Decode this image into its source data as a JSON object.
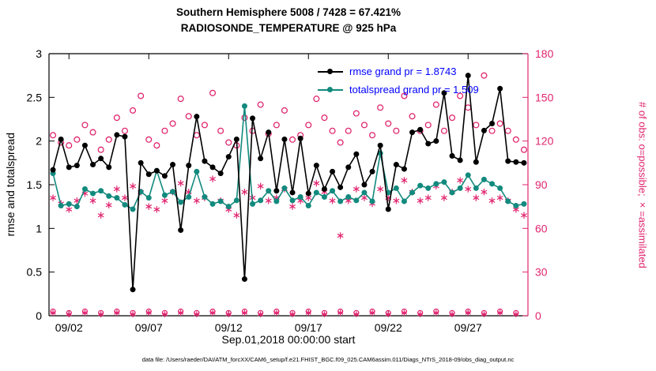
{
  "caption": "data file: /Users/raeder/DAI/ATM_forcXX/CAM6_setup/f.e21.FHIST_BGC.f09_025.CAM6assim.011/Diags_NTrS_2018-09/obs_diag_output.nc",
  "chart_data": {
    "type": "line",
    "title": "Southern Hemisphere 5008 / 7428 = 67.421%",
    "subtitle": "RADIOSONDE_TEMPERATURE @ 925 hPa",
    "xlabel": "Sep.01,2018 00:00:00 start",
    "ylabel_left": "rmse and totalspread",
    "ylabel_right": "# of obs: o=possible; ×=assimilated",
    "ylim_left": [
      0,
      3
    ],
    "ylim_right": [
      0,
      180
    ],
    "yticks_left": [
      0,
      0.5,
      1,
      1.5,
      2,
      2.5,
      3
    ],
    "yticks_right": [
      0,
      30,
      60,
      90,
      120,
      150,
      180
    ],
    "xlim_days": [
      0.75,
      30.75
    ],
    "xticks_days": [
      2,
      7,
      12,
      17,
      22,
      27
    ],
    "xtick_labels": [
      "09/02",
      "09/07",
      "09/12",
      "09/17",
      "09/22",
      "09/27"
    ],
    "legend": [
      {
        "label": "rmse grand pr = 1.8743",
        "series": "rmse"
      },
      {
        "label": "totalspread grand pr = 1.509",
        "series": "totalspread"
      }
    ],
    "colors": {
      "rmse": "#000000",
      "totalspread": "#128a7e",
      "obs": "#e0256f",
      "legend_text": "#0000ff"
    },
    "x_days": [
      1,
      1.5,
      2,
      2.5,
      3,
      3.5,
      4,
      4.5,
      5,
      5.5,
      6,
      6.5,
      7,
      7.5,
      8,
      8.5,
      9,
      9.5,
      10,
      10.5,
      11,
      11.5,
      12,
      12.5,
      13,
      13.5,
      14,
      14.5,
      15,
      15.5,
      16,
      16.5,
      17,
      17.5,
      18,
      18.5,
      19,
      19.5,
      20,
      20.5,
      21,
      21.5,
      22,
      22.5,
      23,
      23.5,
      24,
      24.5,
      25,
      25.5,
      26,
      26.5,
      27,
      27.5,
      28,
      28.5,
      29,
      29.5,
      30,
      30.5
    ],
    "series": [
      {
        "name": "rmse",
        "axis": "left",
        "marker": "filled-circle",
        "values": [
          1.67,
          2.02,
          1.7,
          1.72,
          1.95,
          1.73,
          1.8,
          1.7,
          2.07,
          2.05,
          0.3,
          1.75,
          1.62,
          1.66,
          1.6,
          1.73,
          0.98,
          1.72,
          2.28,
          1.77,
          1.7,
          1.63,
          1.82,
          2.02,
          0.42,
          2.26,
          1.8,
          2.1,
          1.43,
          2.02,
          1.41,
          2.03,
          1.4,
          1.72,
          1.45,
          1.65,
          1.47,
          1.7,
          1.85,
          1.5,
          1.65,
          1.95,
          1.22,
          1.73,
          1.68,
          2.1,
          2.13,
          1.97,
          2.0,
          2.55,
          1.83,
          1.78,
          2.75,
          1.76,
          2.12,
          2.2,
          2.6,
          1.77,
          1.76,
          1.75
        ]
      },
      {
        "name": "totalspread",
        "axis": "left",
        "marker": "filled-circle",
        "values": [
          1.63,
          1.26,
          1.28,
          1.25,
          1.45,
          1.4,
          1.43,
          1.37,
          1.35,
          1.27,
          1.22,
          1.42,
          1.35,
          1.66,
          1.38,
          1.42,
          1.3,
          1.36,
          1.65,
          1.36,
          1.28,
          1.31,
          1.25,
          1.32,
          2.4,
          1.28,
          1.32,
          1.43,
          1.31,
          1.46,
          1.32,
          1.36,
          1.26,
          1.41,
          1.36,
          1.43,
          1.31,
          1.36,
          1.32,
          1.41,
          1.31,
          1.86,
          1.41,
          1.46,
          1.31,
          1.41,
          1.49,
          1.46,
          1.51,
          1.53,
          1.41,
          1.46,
          1.61,
          1.46,
          1.56,
          1.51,
          1.46,
          1.31,
          1.26,
          1.28
        ]
      },
      {
        "name": "possible",
        "axis": "right",
        "marker": "open-circle",
        "values": [
          124,
          119,
          117,
          121,
          131,
          126,
          114,
          121,
          136,
          127,
          141,
          151,
          121,
          117,
          127,
          132,
          149,
          137,
          124,
          131,
          153,
          127,
          119,
          117,
          136,
          127,
          145,
          125,
          131,
          141,
          121,
          124,
          131,
          149,
          136,
          127,
          119,
          127,
          139,
          131,
          124,
          143,
          132,
          127,
          151,
          137,
          127,
          131,
          145,
          127,
          136,
          151,
          143,
          131,
          165,
          127,
          132,
          127,
          121,
          114
        ]
      },
      {
        "name": "assimilated",
        "axis": "right",
        "marker": "asterisk",
        "values": [
          81,
          77,
          73,
          79,
          84,
          79,
          69,
          76,
          87,
          81,
          89,
          85,
          75,
          73,
          79,
          85,
          91,
          85,
          79,
          81,
          94,
          79,
          73,
          69,
          85,
          81,
          89,
          79,
          81,
          87,
          75,
          79,
          81,
          91,
          85,
          79,
          55,
          79,
          87,
          81,
          77,
          87,
          81,
          79,
          93,
          85,
          79,
          81,
          89,
          81,
          85,
          93,
          87,
          81,
          85,
          79,
          81,
          79,
          73,
          69
        ]
      }
    ],
    "low_obs": {
      "x_days": [
        1,
        2,
        3,
        4,
        5,
        6,
        7,
        8,
        9,
        10,
        11,
        12,
        13,
        14,
        15,
        16,
        17,
        18,
        19,
        20,
        21,
        22,
        23,
        24,
        25,
        26,
        27,
        28,
        29,
        30
      ],
      "possible": [
        3,
        2,
        3,
        2,
        3,
        2,
        3,
        2,
        3,
        2,
        3,
        2,
        3,
        2,
        3,
        2,
        3,
        2,
        3,
        2,
        3,
        2,
        3,
        2,
        3,
        2,
        3,
        2,
        3,
        2
      ],
      "assimilated": [
        2,
        1,
        2,
        1,
        2,
        1,
        2,
        1,
        2,
        1,
        2,
        1,
        2,
        1,
        2,
        1,
        2,
        1,
        2,
        1,
        2,
        1,
        2,
        1,
        2,
        1,
        2,
        1,
        2,
        1
      ]
    }
  }
}
